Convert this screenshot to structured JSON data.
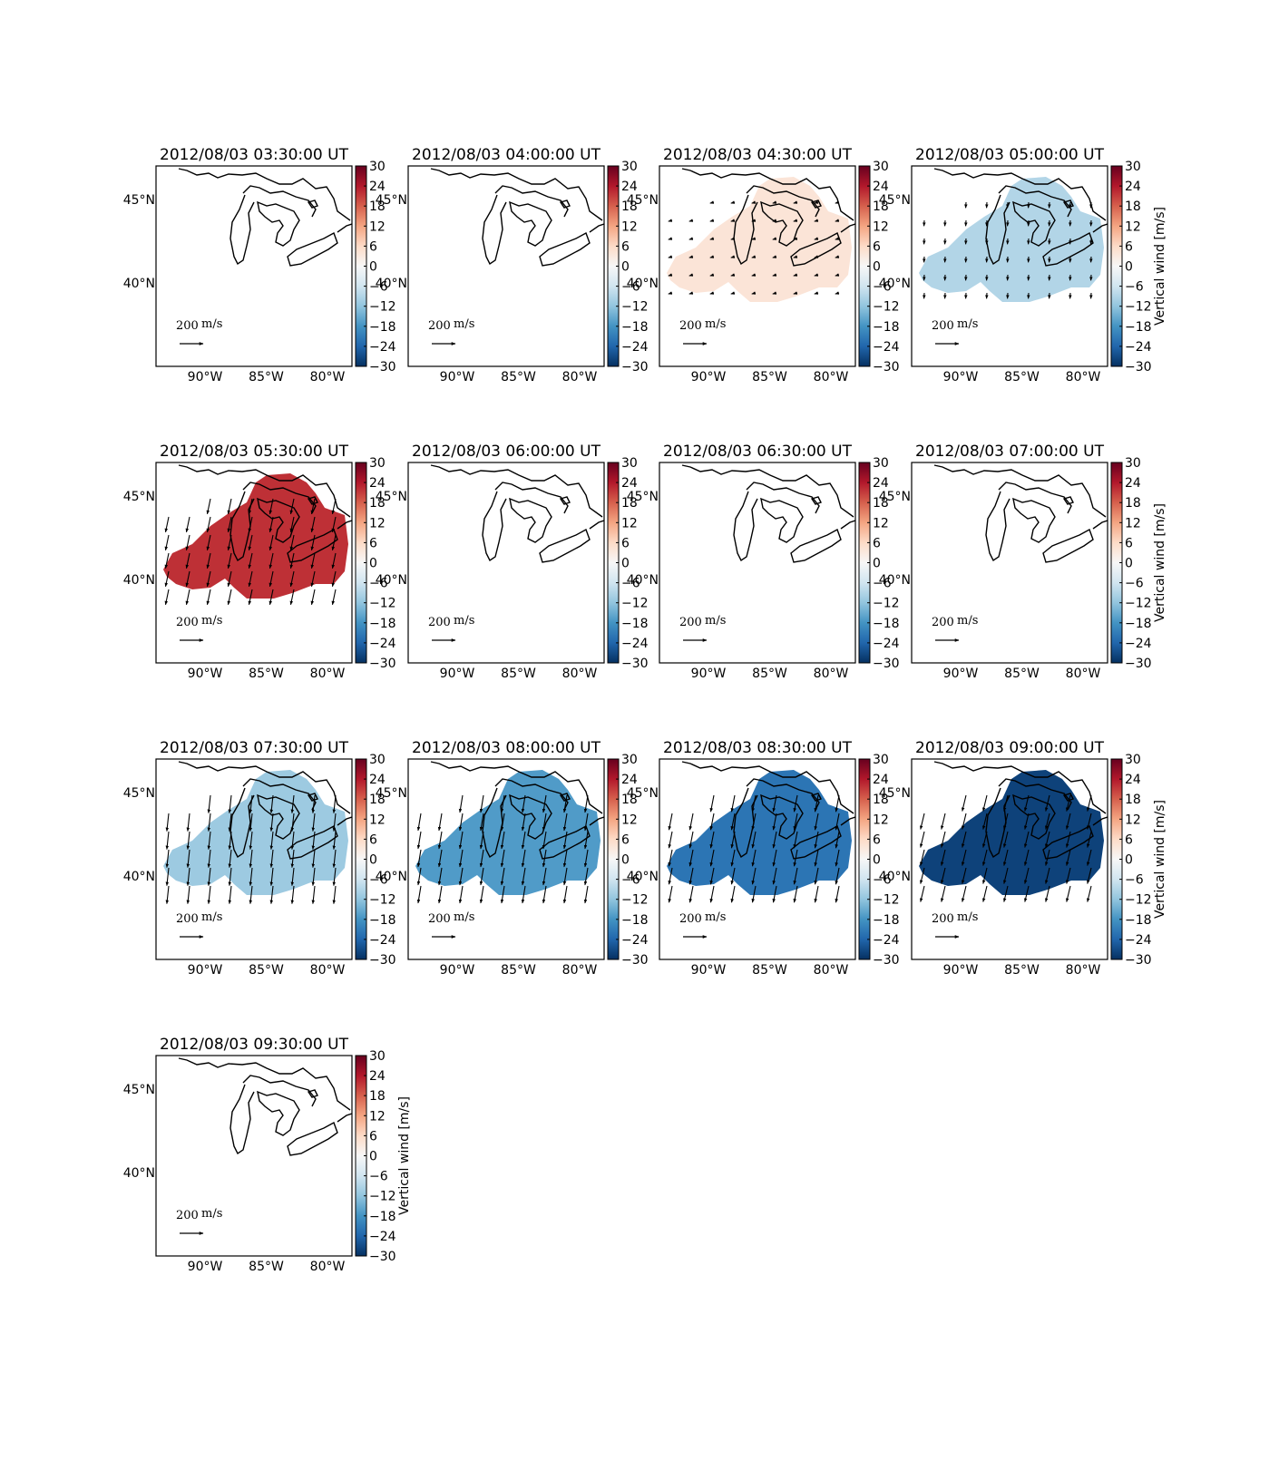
{
  "figure": {
    "colors": {
      "coast": "#000000",
      "colormap": [
        "#053061",
        "#2166ac",
        "#4393c3",
        "#92c5de",
        "#d1e5f0",
        "#f7f7f7",
        "#fddbc7",
        "#f4a582",
        "#d6604d",
        "#b2182b",
        "#67001f"
      ]
    },
    "colorbar": {
      "label": "Vertical wind [m/s]",
      "range": [
        -30,
        30
      ],
      "ticks": [
        "30",
        "24",
        "18",
        "12",
        "6",
        "0",
        "−6",
        "−12",
        "−18",
        "−24",
        "−30"
      ]
    },
    "axes": {
      "x_ticks": [
        {
          "lon": -90,
          "label": "90°W"
        },
        {
          "lon": -85,
          "label": "85°W"
        },
        {
          "lon": -80,
          "label": "80°W"
        }
      ],
      "y_ticks": [
        {
          "lat": 45,
          "label": "45°N"
        },
        {
          "lat": 40,
          "label": "40°N"
        }
      ],
      "lon_range": [
        -94,
        -78
      ],
      "lat_range": [
        35,
        47
      ]
    },
    "scale": {
      "label": "200",
      "unit": "m/s"
    },
    "panels": [
      {
        "title": "2012/08/03 03:30:00 UT",
        "vertical_wind": null,
        "wind_vector": null,
        "colorbar_label": false
      },
      {
        "title": "2012/08/03 04:00:00 UT",
        "vertical_wind": null,
        "wind_vector": null,
        "colorbar_label": false
      },
      {
        "title": "2012/08/03 04:30:00 UT",
        "vertical_wind": 4,
        "wind_vector": [
          -30,
          -8
        ],
        "colorbar_label": false
      },
      {
        "title": "2012/08/03 05:00:00 UT",
        "vertical_wind": -9,
        "wind_vector": [
          -3,
          -45
        ],
        "colorbar_label": true
      },
      {
        "title": "2012/08/03 05:30:00 UT",
        "vertical_wind": 22,
        "wind_vector": [
          -25,
          -120
        ],
        "colorbar_label": false
      },
      {
        "title": "2012/08/03 06:00:00 UT",
        "vertical_wind": null,
        "wind_vector": null,
        "colorbar_label": false
      },
      {
        "title": "2012/08/03 06:30:00 UT",
        "vertical_wind": null,
        "wind_vector": null,
        "colorbar_label": false
      },
      {
        "title": "2012/08/03 07:00:00 UT",
        "vertical_wind": null,
        "wind_vector": null,
        "colorbar_label": true
      },
      {
        "title": "2012/08/03 07:30:00 UT",
        "vertical_wind": -11,
        "wind_vector": [
          -15,
          -140
        ],
        "colorbar_label": false
      },
      {
        "title": "2012/08/03 08:00:00 UT",
        "vertical_wind": -17,
        "wind_vector": [
          -22,
          -135
        ],
        "colorbar_label": false
      },
      {
        "title": "2012/08/03 08:30:00 UT",
        "vertical_wind": -22,
        "wind_vector": [
          -25,
          -130
        ],
        "colorbar_label": false
      },
      {
        "title": "2012/08/03 09:00:00 UT",
        "vertical_wind": -28,
        "wind_vector": [
          -30,
          -125
        ],
        "colorbar_label": true
      },
      {
        "title": "2012/08/03 09:30:00 UT",
        "vertical_wind": null,
        "wind_vector": null,
        "colorbar_label": true
      }
    ]
  }
}
